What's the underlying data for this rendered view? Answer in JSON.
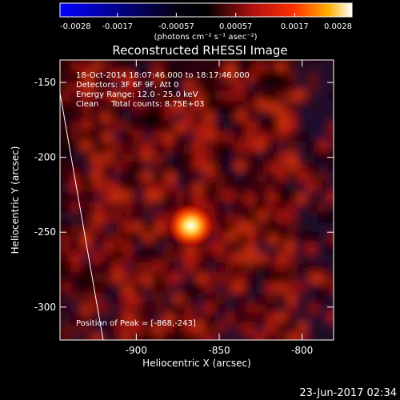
{
  "colorbar": {
    "ticks": [
      "-0.0028",
      "-0.0017",
      "-0.00057",
      "0.00057",
      "0.0017",
      "0.0028"
    ],
    "unit_line": "(photons cm⁻² s⁻¹ asec⁻²)"
  },
  "title": "Reconstructed RHESSI Image",
  "info": {
    "line1": "18-Oct-2014 18:07:46.000 to 18:17:46.000",
    "line2": "Detectors: 3F 6F 9F, Att 0",
    "line3": "Energy Range: 12.0 - 25.0 keV",
    "line4": "Clean     Total counts: 8.75E+03"
  },
  "peak_label": "Position of Peak = [-868,-243]",
  "footer_date": "23-Jun-2017 02:34",
  "chart_data": {
    "type": "heatmap",
    "xlabel": "Heliocentric X (arcsec)",
    "ylabel": "Heliocentric Y (arcsec)",
    "xlim": [
      -946,
      -781
    ],
    "ylim": [
      -322,
      -135
    ],
    "x_ticks": [
      -900,
      -850,
      -800
    ],
    "y_ticks": [
      -150,
      -200,
      -250,
      -300
    ],
    "colorbar_range": [
      -0.0028,
      0.0028
    ],
    "peak": {
      "x": -868,
      "y": -243
    },
    "limb_line": [
      [
        -946,
        -157
      ],
      [
        -920,
        -322
      ]
    ],
    "colormap": [
      "#0000ff",
      "#000000",
      "#a01010",
      "#ff2000",
      "#ffa000",
      "#ffffff"
    ]
  }
}
